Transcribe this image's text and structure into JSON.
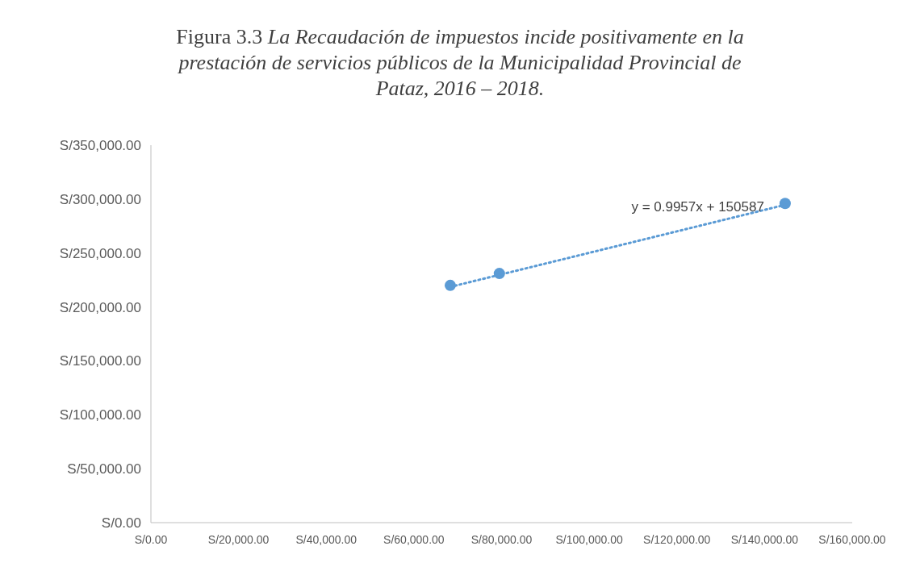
{
  "chart_data": {
    "type": "scatter",
    "title": "Figura 3.3",
    "subtitle": "La Recaudación de impuestos incide positivamente en la prestación de servicios públicos de la Municipalidad Provincial de Pataz, 2016 – 2018.",
    "x": [
      68300,
      79500,
      144700
    ],
    "series": [
      {
        "color": "#5b9bd5",
        "values": [
          220000,
          231000,
          296000
        ]
      },
      {
        "type": "line",
        "color": "#5b9bd5",
        "line_style": "dotted",
        "marker": "none",
        "x": [
          68300,
          144700
        ],
        "values": [
          218600,
          294700
        ]
      }
    ],
    "marker": "circle",
    "grid": false,
    "xlim": [
      0,
      160000
    ],
    "ylim": [
      0,
      350000
    ],
    "xticks": [
      {
        "value": 0,
        "label": "S/0.00"
      },
      {
        "value": 20000,
        "label": "S/20,000.00"
      },
      {
        "value": 40000,
        "label": "S/40,000.00"
      },
      {
        "value": 60000,
        "label": "S/60,000.00"
      },
      {
        "value": 80000,
        "label": "S/80,000.00"
      },
      {
        "value": 100000,
        "label": "S/100,000.00"
      },
      {
        "value": 120000,
        "label": "S/120,000.00"
      },
      {
        "value": 140000,
        "label": "S/140,000.00"
      },
      {
        "value": 160000,
        "label": "S/160,000.00"
      }
    ],
    "yticks": [
      {
        "value": 0,
        "label": "S/0.00"
      },
      {
        "value": 50000,
        "label": "S/50,000.00"
      },
      {
        "value": 100000,
        "label": "S/100,000.00"
      },
      {
        "value": 150000,
        "label": "S/150,000.00"
      },
      {
        "value": 200000,
        "label": "S/200,000.00"
      },
      {
        "value": 250000,
        "label": "S/250,000.00"
      },
      {
        "value": 300000,
        "label": "S/300,000.00"
      },
      {
        "value": 350000,
        "label": "S/350,000.00"
      }
    ],
    "annotations": [
      {
        "text": "y = 0.9957x + 150587",
        "x": 144700,
        "y": 294700
      }
    ]
  }
}
